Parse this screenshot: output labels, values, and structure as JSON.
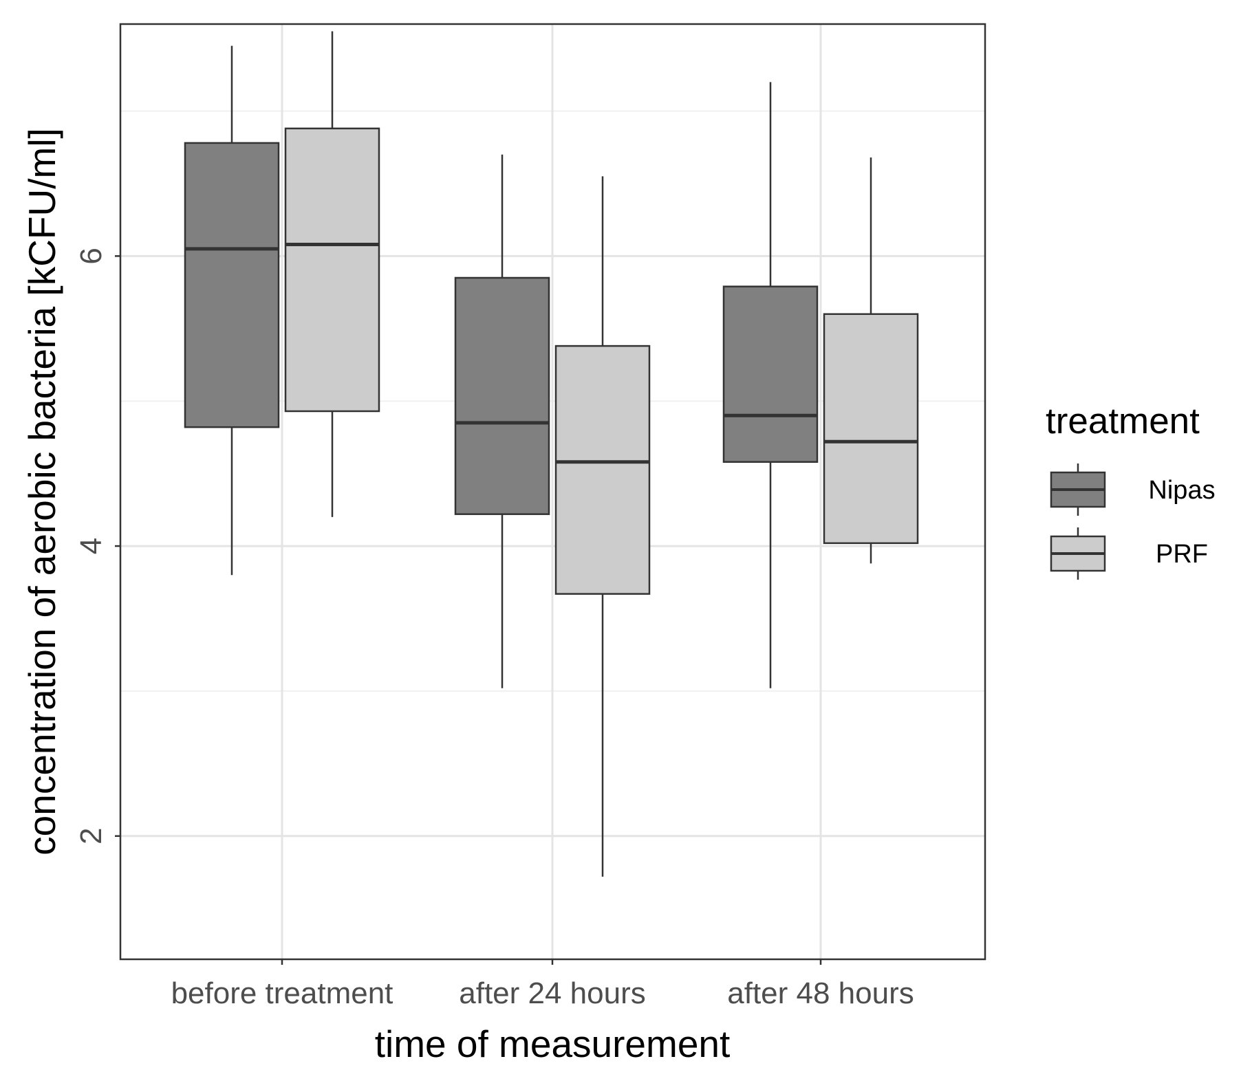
{
  "chart_data": {
    "type": "boxplot",
    "title": "",
    "xlabel": "time of measurement",
    "ylabel": "concentration of aerobic bacteria [kCFU/ml]",
    "ylim": [
      1.15,
      7.6
    ],
    "y_ticks": [
      2,
      4,
      6
    ],
    "y_minor_gridlines": [
      3,
      5,
      7
    ],
    "grid": true,
    "categories": [
      "before treatment",
      "after 24 hours",
      "after 48 hours"
    ],
    "legend": {
      "title": "treatment",
      "position": "right"
    },
    "series": [
      {
        "name": "Nipas",
        "color": "#808080",
        "boxes": [
          {
            "min": 3.8,
            "q1": 4.82,
            "median": 6.05,
            "q3": 6.78,
            "max": 7.45
          },
          {
            "min": 3.02,
            "q1": 4.22,
            "median": 4.85,
            "q3": 5.85,
            "max": 6.7
          },
          {
            "min": 3.02,
            "q1": 4.58,
            "median": 4.9,
            "q3": 5.79,
            "max": 7.2
          }
        ]
      },
      {
        "name": "PRF",
        "color": "#cccccc",
        "boxes": [
          {
            "min": 4.2,
            "q1": 4.93,
            "median": 6.08,
            "q3": 6.88,
            "max": 7.55
          },
          {
            "min": 1.72,
            "q1": 3.67,
            "median": 4.58,
            "q3": 5.38,
            "max": 6.55
          },
          {
            "min": 3.88,
            "q1": 4.02,
            "median": 4.72,
            "q3": 5.6,
            "max": 6.68
          }
        ]
      }
    ]
  }
}
